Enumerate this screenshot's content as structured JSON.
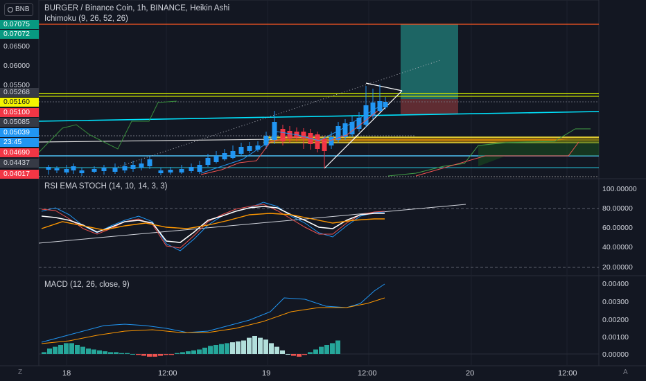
{
  "header": {
    "symbol_badge": "BNB",
    "title": "BURGER / Binance Coin, 1h, BINANCE, Heikin Ashi",
    "ichimoku_label": "Ichimoku (9, 26, 52, 26)"
  },
  "left_price_tags": [
    {
      "label": "0.07075",
      "bg": "#089981",
      "fg": "#ffffff"
    },
    {
      "label": "0.07072",
      "bg": "#089981",
      "fg": "#ffffff"
    },
    {
      "label": "0.06500",
      "bg": "",
      "fg": "#d1d4dc"
    },
    {
      "label": "0.06000",
      "bg": "",
      "fg": "#d1d4dc"
    },
    {
      "label": "0.05500",
      "bg": "",
      "fg": "#d1d4dc"
    },
    {
      "label": "0.05268",
      "bg": "#363a45",
      "fg": "#d1d4dc"
    },
    {
      "label": "0.05160",
      "bg": "#f5f500",
      "fg": "#131722"
    },
    {
      "label": "0.05100",
      "bg": "#f23645",
      "fg": "#ffffff"
    },
    {
      "label": "0.05085",
      "bg": "#363a45",
      "fg": "#d1d4dc"
    },
    {
      "label": "0.05039",
      "bg": "#2196f3",
      "fg": "#ffffff"
    },
    {
      "label": "23:45",
      "bg": "#2196f3",
      "fg": "#ffffff"
    },
    {
      "label": "0.04690",
      "bg": "#f23645",
      "fg": "#ffffff"
    },
    {
      "label": "0.04437",
      "bg": "#363a45",
      "fg": "#d1d4dc"
    },
    {
      "label": "0.04017",
      "bg": "#f23645",
      "fg": "#ffffff"
    }
  ],
  "rsi": {
    "label": "RSI EMA STOCH (14, 10, 14, 3, 3)",
    "axis": [
      "100.00000",
      "80.00000",
      "60.00000",
      "40.00000",
      "20.00000"
    ]
  },
  "macd": {
    "label": "MACD (12, 26, close, 9)",
    "axis": [
      "0.00400",
      "0.00300",
      "0.00200",
      "0.00100",
      "0.00000"
    ]
  },
  "time_axis": [
    "18",
    "12:00",
    "19",
    "12:00",
    "20",
    "12:00"
  ],
  "corners": {
    "left": "Z",
    "right": "A"
  },
  "colors": {
    "background": "#131722",
    "bull_candle": "#2196f3",
    "bear_candle": "#f23645",
    "macd_line": "#2196f3",
    "signal_line": "#ff9800",
    "hist_pos": "#26a69a",
    "hist_pos_light": "#b2dfdb",
    "hist_neg": "#ef5350",
    "rsi_white": "#ffffff",
    "cyan_line": "#00e5ff",
    "yellow_line": "#ffeb3b",
    "tp_zone": "#26a69a",
    "sl_zone": "#ef5350",
    "top_red_line": "#ff5722"
  }
}
